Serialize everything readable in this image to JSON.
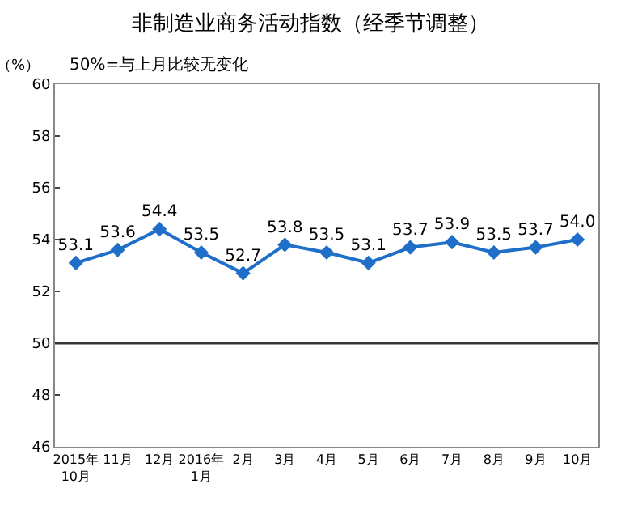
{
  "chart_data": {
    "type": "line",
    "title": "非制造业商务活动指数（经季节调整）",
    "ylabel": "（%）",
    "annotations": [
      "50%=与上月比较无变化"
    ],
    "categories": [
      "2015年\n10月",
      "11月",
      "12月",
      "2016年\n1月",
      "2月",
      "3月",
      "4月",
      "5月",
      "6月",
      "7月",
      "8月",
      "9月",
      "10月"
    ],
    "series": [
      {
        "color": "#1f6fc8",
        "values": [
          53.1,
          53.6,
          54.4,
          53.5,
          52.7,
          53.8,
          53.5,
          53.1,
          53.7,
          53.9,
          53.5,
          53.7,
          54.0
        ],
        "value_labels": [
          "53.1",
          "53.6",
          "54.4",
          "53.5",
          "52.7",
          "53.8",
          "53.5",
          "53.1",
          "53.7",
          "53.9",
          "53.5",
          "53.7",
          "54.0"
        ]
      }
    ],
    "ylim": [
      46,
      60
    ],
    "yticks": [
      46,
      48,
      50,
      52,
      54,
      56,
      58,
      60
    ],
    "ref_lines": [
      {
        "axis": "y",
        "value": 50,
        "color": "#333333",
        "line_style": "solid"
      }
    ],
    "grid": false,
    "marker": "diamond",
    "line_style": "solid"
  }
}
